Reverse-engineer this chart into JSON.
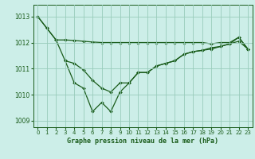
{
  "title": "Graphe pression niveau de la mer (hPa)",
  "bg_color": "#cceee8",
  "grid_color": "#99ccbb",
  "line_color": "#1a5c1a",
  "xlim": [
    -0.5,
    23.5
  ],
  "ylim": [
    1008.75,
    1013.45
  ],
  "yticks": [
    1009,
    1010,
    1011,
    1012,
    1013
  ],
  "xticks": [
    0,
    1,
    2,
    3,
    4,
    5,
    6,
    7,
    8,
    9,
    10,
    11,
    12,
    13,
    14,
    15,
    16,
    17,
    18,
    19,
    20,
    21,
    22,
    23
  ],
  "line1_x": [
    0,
    1,
    2,
    3,
    4,
    5,
    6,
    7,
    8,
    9,
    10,
    11,
    12,
    13,
    14,
    15,
    16,
    17,
    18,
    19,
    20,
    21,
    22,
    23
  ],
  "line1_y": [
    1013.0,
    1012.55,
    1012.1,
    1012.1,
    1012.08,
    1012.05,
    1012.02,
    1012.0,
    1012.0,
    1012.0,
    1012.0,
    1012.0,
    1012.0,
    1012.0,
    1012.0,
    1012.0,
    1012.0,
    1012.0,
    1012.0,
    1011.95,
    1012.0,
    1012.0,
    1012.2,
    1011.75
  ],
  "line2_x": [
    0,
    1,
    2,
    3,
    4,
    5,
    6,
    7,
    8,
    9,
    10,
    11,
    12,
    13,
    14,
    15,
    16,
    17,
    18,
    19,
    20,
    21,
    22,
    23
  ],
  "line2_y": [
    1013.0,
    1012.55,
    1012.1,
    1011.3,
    1010.45,
    1010.25,
    1009.35,
    1009.7,
    1009.35,
    1010.1,
    1010.45,
    1010.85,
    1010.85,
    1011.1,
    1011.2,
    1011.3,
    1011.55,
    1011.65,
    1011.7,
    1011.8,
    1011.85,
    1011.95,
    1012.2,
    1011.75
  ],
  "line3_x": [
    3,
    4,
    5,
    6,
    7,
    8,
    9,
    10,
    11,
    12,
    13,
    14,
    15,
    16,
    17,
    18,
    19,
    20,
    21,
    22,
    23
  ],
  "line3_y": [
    1011.3,
    1011.2,
    1010.95,
    1010.55,
    1010.25,
    1010.1,
    1010.45,
    1010.45,
    1010.85,
    1010.85,
    1011.1,
    1011.2,
    1011.3,
    1011.55,
    1011.65,
    1011.7,
    1011.75,
    1011.85,
    1011.95,
    1012.05,
    1011.75
  ]
}
